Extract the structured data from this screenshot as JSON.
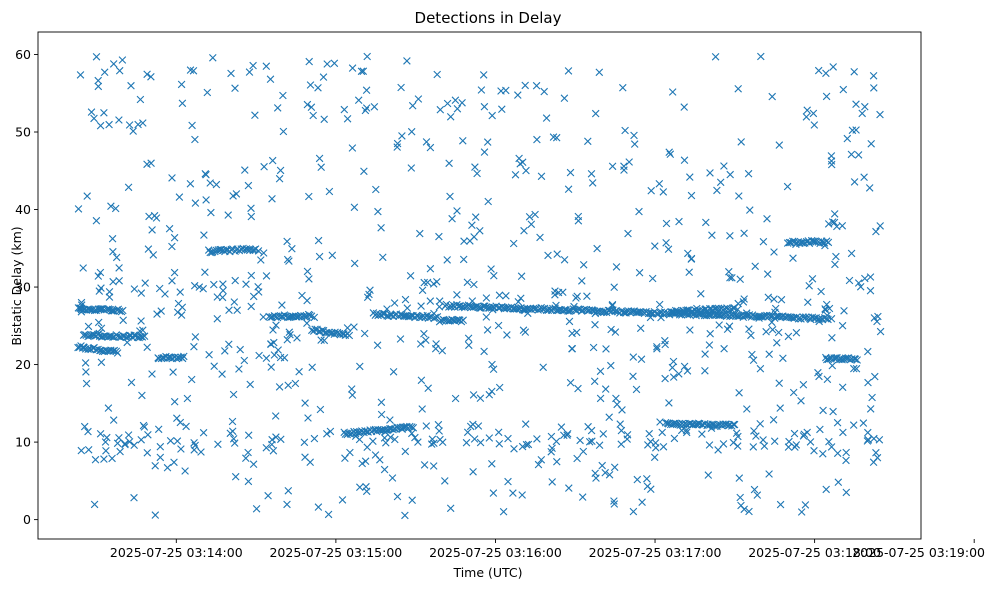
{
  "chart_data": {
    "type": "scatter",
    "title": "Detections in Delay",
    "xlabel": "Time (UTC)",
    "ylabel": "Bistatic Delay (km)",
    "marker": "x",
    "color": "#1f77b4",
    "xlim_seconds": [
      -112,
      220
    ],
    "ylim": [
      -2.5,
      62.9
    ],
    "yticks": [
      0,
      10,
      20,
      30,
      40,
      50,
      60
    ],
    "xticks": [
      {
        "t": -60,
        "label": "2025-07-25 03:14:00"
      },
      {
        "t": 0,
        "label": "2025-07-25 03:15:00"
      },
      {
        "t": 60,
        "label": "2025-07-25 03:16:00"
      },
      {
        "t": 120,
        "label": "2025-07-25 03:17:00"
      },
      {
        "t": 180,
        "label": "2025-07-25 03:18:00"
      },
      {
        "t": 240,
        "label": "2025-07-25 03:19:00"
      }
    ],
    "time_origin": "2025-07-25 03:15:00",
    "time_range_seconds": [
      -97,
      205
    ],
    "tracks": [
      {
        "t0": -97,
        "t1": -82,
        "y0": 22.3,
        "y1": 21.6
      },
      {
        "t0": -95,
        "t1": -72,
        "y0": 23.8,
        "y1": 23.6
      },
      {
        "t0": -97,
        "t1": -80,
        "y0": 27.2,
        "y1": 27.0
      },
      {
        "t0": -67,
        "t1": -57,
        "y0": 20.9,
        "y1": 20.9
      },
      {
        "t0": -48,
        "t1": -30,
        "y0": 34.6,
        "y1": 34.9
      },
      {
        "t0": -25,
        "t1": -9,
        "y0": 26.2,
        "y1": 26.3
      },
      {
        "t0": -9,
        "t1": 5,
        "y0": 24.5,
        "y1": 23.8
      },
      {
        "t0": 3,
        "t1": 29,
        "y0": 11.1,
        "y1": 12.0
      },
      {
        "t0": 14,
        "t1": 38,
        "y0": 26.5,
        "y1": 26.1
      },
      {
        "t0": 39,
        "t1": 48,
        "y0": 25.7,
        "y1": 25.7
      },
      {
        "t0": 41,
        "t1": 185,
        "y0": 27.6,
        "y1": 25.9
      },
      {
        "t0": 124,
        "t1": 150,
        "y0": 12.4,
        "y1": 12.1
      },
      {
        "t0": 126,
        "t1": 150,
        "y0": 26.8,
        "y1": 27.2
      },
      {
        "t0": 170,
        "t1": 185,
        "y0": 35.8,
        "y1": 35.8
      },
      {
        "t0": 184,
        "t1": 196,
        "y0": 20.8,
        "y1": 20.7
      }
    ],
    "scattered_points": 900,
    "clusters": [
      {
        "y": 10.2,
        "spread": 1.2,
        "share": 0.16
      },
      {
        "y": 26.5,
        "spread": 3.0,
        "share": 0.14
      }
    ]
  }
}
